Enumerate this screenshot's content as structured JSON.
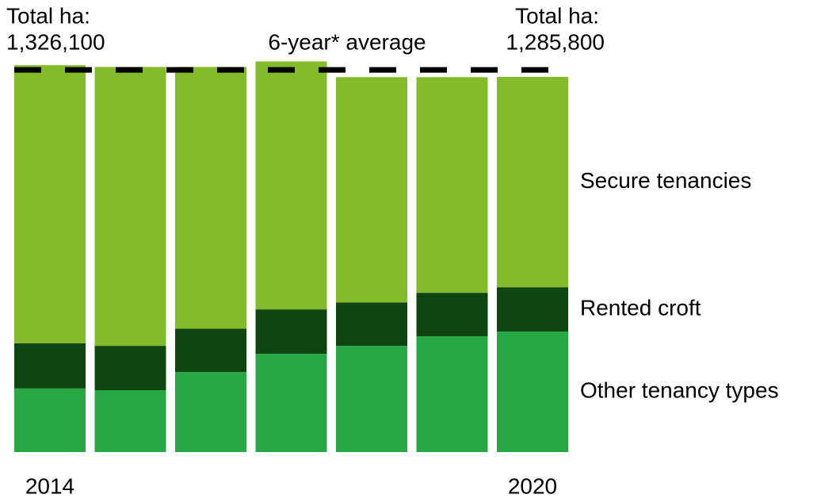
{
  "chart_data": {
    "type": "stacked_bar",
    "categories": [
      "2014",
      null,
      null,
      null,
      null,
      null,
      "2020"
    ],
    "series": [
      {
        "name": "Other tenancy types",
        "color": "#27a844",
        "values": [
          218000,
          212000,
          274000,
          337000,
          364000,
          397000,
          413000
        ]
      },
      {
        "name": "Rented croft",
        "color": "#0f4511",
        "values": [
          155000,
          152000,
          149000,
          152000,
          149000,
          149000,
          152000
        ]
      },
      {
        "name": "Secure tenancies",
        "color": "#84bb2a",
        "values": [
          953100,
          956000,
          897000,
          850000,
          772000,
          739000,
          720800
        ]
      }
    ],
    "totals": {
      "label": "Total ha:",
      "values": [
        1326100,
        null,
        null,
        null,
        null,
        null,
        1285800
      ],
      "value_labels": [
        "1,326,100",
        null,
        null,
        null,
        null,
        null,
        "1,285,800"
      ]
    },
    "average": {
      "label": "6-year* average",
      "value": 1310000,
      "color": "#000000"
    },
    "ylim": [
      0,
      1400000
    ]
  }
}
